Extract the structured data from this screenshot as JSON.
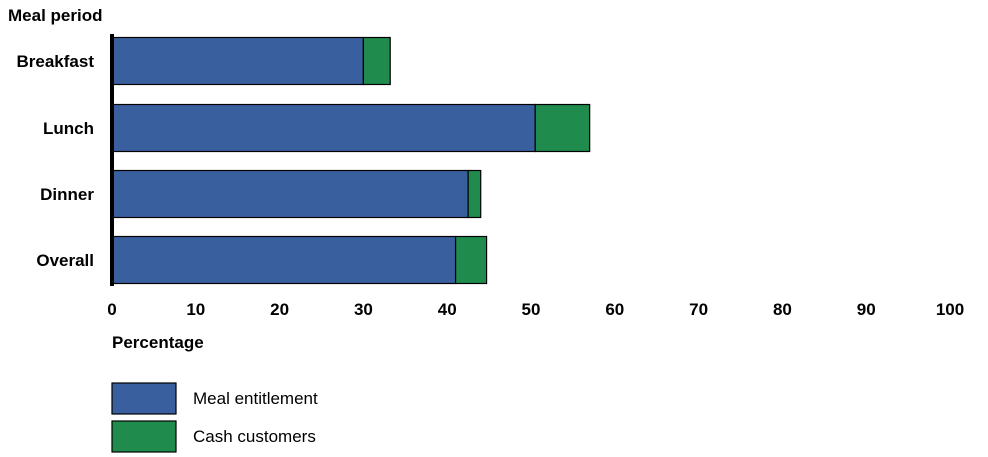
{
  "chart_data": {
    "type": "bar",
    "orientation": "horizontal",
    "stacked": true,
    "y_title": "Meal period",
    "xlabel": "Percentage",
    "categories": [
      "Breakfast",
      "Lunch",
      "Dinner",
      "Overall"
    ],
    "series": [
      {
        "name": "Meal entitlement",
        "color": "#3a5f9e",
        "values": [
          30,
          50.5,
          42.5,
          41
        ]
      },
      {
        "name": "Cash customers",
        "color": "#1f8b4c",
        "values": [
          3.2,
          6.5,
          1.5,
          3.7
        ]
      }
    ],
    "xlim": [
      0,
      100
    ],
    "xticks": [
      "0",
      "10",
      "20",
      "30",
      "40",
      "50",
      "60",
      "70",
      "80",
      "90",
      "100"
    ],
    "grid": false,
    "legend_position": "bottom-left"
  }
}
